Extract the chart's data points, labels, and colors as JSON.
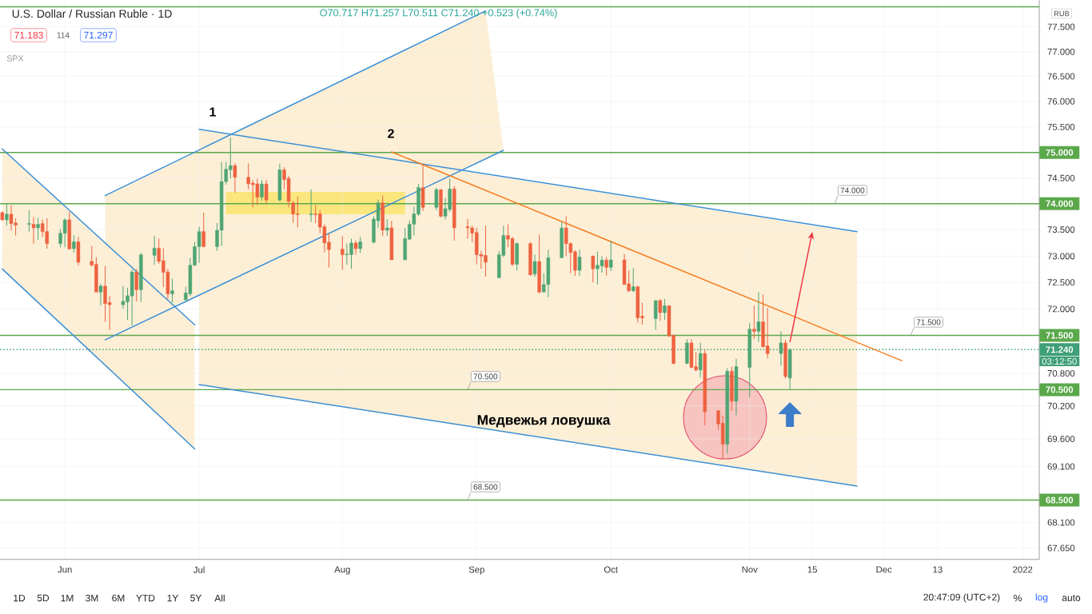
{
  "chart_data": {
    "type": "candlestick",
    "title": "U.S. Dollar / Russian Ruble · 1D",
    "subtitle": "O70.717 H71.257 L70.511 C71.240 +0.523 (+0.74%)",
    "x": [
      "2021-05-18",
      "2021-05-19",
      "2021-05-20",
      "2021-05-21",
      "2021-05-24",
      "2021-05-25",
      "2021-05-26",
      "2021-05-27",
      "2021-05-28",
      "2021-05-31",
      "2021-06-01",
      "2021-06-02",
      "2021-06-03",
      "2021-06-04",
      "2021-06-07",
      "2021-06-08",
      "2021-06-09",
      "2021-06-10",
      "2021-06-11",
      "2021-06-14",
      "2021-06-15",
      "2021-06-16",
      "2021-06-17",
      "2021-06-18",
      "2021-06-21",
      "2021-06-22",
      "2021-06-23",
      "2021-06-24",
      "2021-06-25",
      "2021-06-28",
      "2021-06-29",
      "2021-06-30",
      "2021-07-01",
      "2021-07-02",
      "2021-07-05",
      "2021-07-06",
      "2021-07-07",
      "2021-07-08",
      "2021-07-09",
      "2021-07-12",
      "2021-07-13",
      "2021-07-14",
      "2021-07-15",
      "2021-07-16",
      "2021-07-19",
      "2021-07-20",
      "2021-07-21",
      "2021-07-22",
      "2021-07-23",
      "2021-07-26",
      "2021-07-27",
      "2021-07-28",
      "2021-07-29",
      "2021-07-30",
      "2021-08-02",
      "2021-08-03",
      "2021-08-04",
      "2021-08-05",
      "2021-08-06",
      "2021-08-09",
      "2021-08-10",
      "2021-08-11",
      "2021-08-12",
      "2021-08-13",
      "2021-08-16",
      "2021-08-17",
      "2021-08-18",
      "2021-08-19",
      "2021-08-20",
      "2021-08-23",
      "2021-08-24",
      "2021-08-25",
      "2021-08-26",
      "2021-08-27",
      "2021-08-30",
      "2021-08-31",
      "2021-09-01",
      "2021-09-02",
      "2021-09-03",
      "2021-09-06",
      "2021-09-07",
      "2021-09-08",
      "2021-09-09",
      "2021-09-10",
      "2021-09-13",
      "2021-09-14",
      "2021-09-15",
      "2021-09-16",
      "2021-09-17",
      "2021-09-20",
      "2021-09-21",
      "2021-09-22",
      "2021-09-23",
      "2021-09-24",
      "2021-09-27",
      "2021-09-28",
      "2021-09-29",
      "2021-09-30",
      "2021-10-01",
      "2021-10-04",
      "2021-10-05",
      "2021-10-06",
      "2021-10-07",
      "2021-10-08",
      "2021-10-11",
      "2021-10-12",
      "2021-10-13",
      "2021-10-14",
      "2021-10-15",
      "2021-10-18",
      "2021-10-19",
      "2021-10-20",
      "2021-10-21",
      "2021-10-22",
      "2021-10-25",
      "2021-10-26",
      "2021-10-27",
      "2021-10-28",
      "2021-10-29",
      "2021-11-01",
      "2021-11-02",
      "2021-11-03",
      "2021-11-04",
      "2021-11-05",
      "2021-11-08",
      "2021-11-09",
      "2021-11-10"
    ],
    "ohlc": [
      [
        73.83,
        73.86,
        73.68,
        73.69
      ],
      [
        73.69,
        74.01,
        73.58,
        73.8
      ],
      [
        73.8,
        73.97,
        73.49,
        73.62
      ],
      [
        73.63,
        73.72,
        73.39,
        73.59
      ],
      [
        73.6,
        73.87,
        73.46,
        73.62
      ],
      [
        73.61,
        73.75,
        73.23,
        73.53
      ],
      [
        73.53,
        73.73,
        73.31,
        73.61
      ],
      [
        73.62,
        73.7,
        73.37,
        73.46
      ],
      [
        73.47,
        73.72,
        73.14,
        73.23
      ],
      [
        73.23,
        73.51,
        73.16,
        73.43
      ],
      [
        73.43,
        73.72,
        73.16,
        73.69
      ],
      [
        73.69,
        73.84,
        73.12,
        73.13
      ],
      [
        73.14,
        73.39,
        73.06,
        73.27
      ],
      [
        73.27,
        73.37,
        72.82,
        72.88
      ],
      [
        72.9,
        73.19,
        72.8,
        72.82
      ],
      [
        72.84,
        72.98,
        72.32,
        72.32
      ],
      [
        72.32,
        72.47,
        72.06,
        72.43
      ],
      [
        72.43,
        72.81,
        71.76,
        72.1
      ],
      [
        72.12,
        72.24,
        71.61,
        72.08
      ],
      [
        72.08,
        72.43,
        72.01,
        72.14
      ],
      [
        72.13,
        72.4,
        71.79,
        72.25
      ],
      [
        72.24,
        72.74,
        71.69,
        72.7
      ],
      [
        72.7,
        72.76,
        72.14,
        72.36
      ],
      [
        72.36,
        73.06,
        72.13,
        73.02
      ],
      [
        73.01,
        73.38,
        72.83,
        73.15
      ],
      [
        73.15,
        73.33,
        72.86,
        72.9
      ],
      [
        72.91,
        73.15,
        72.41,
        72.69
      ],
      [
        72.7,
        72.76,
        72.18,
        72.28
      ],
      [
        72.28,
        72.57,
        72.11,
        72.34
      ],
      [
        72.17,
        72.42,
        72.16,
        72.3
      ],
      [
        72.28,
        72.96,
        72.24,
        72.82
      ],
      [
        72.82,
        73.27,
        72.81,
        73.18
      ],
      [
        73.18,
        73.56,
        72.87,
        73.47
      ],
      [
        73.47,
        73.83,
        73.16,
        73.18
      ],
      [
        73.18,
        73.63,
        73.1,
        73.49
      ],
      [
        73.49,
        74.81,
        73.2,
        74.43
      ],
      [
        74.43,
        74.81,
        74.37,
        74.67
      ],
      [
        74.66,
        75.29,
        74.49,
        74.74
      ],
      [
        74.74,
        74.79,
        74.21,
        74.51
      ],
      [
        74.52,
        74.79,
        74.28,
        74.38
      ],
      [
        74.4,
        74.46,
        73.93,
        74.37
      ],
      [
        74.38,
        74.48,
        73.97,
        74.13
      ],
      [
        74.13,
        74.46,
        74.06,
        74.38
      ],
      [
        74.38,
        74.46,
        73.99,
        74.07
      ],
      [
        74.07,
        74.78,
        74.04,
        74.66
      ],
      [
        74.66,
        74.71,
        74.28,
        74.47
      ],
      [
        74.49,
        74.54,
        73.93,
        74.04
      ],
      [
        74.02,
        74.06,
        73.64,
        73.8
      ],
      [
        73.81,
        74.14,
        73.55,
        73.79
      ],
      [
        73.79,
        74.28,
        73.65,
        73.81
      ],
      [
        73.81,
        73.97,
        73.63,
        73.79
      ],
      [
        73.81,
        73.88,
        73.43,
        73.55
      ],
      [
        73.56,
        73.61,
        73.07,
        73.25
      ],
      [
        73.26,
        73.44,
        72.78,
        73.12
      ],
      [
        73.13,
        73.38,
        72.74,
        73.02
      ],
      [
        73.02,
        73.23,
        72.83,
        73.04
      ],
      [
        73.03,
        73.33,
        72.76,
        73.25
      ],
      [
        73.25,
        73.3,
        73.03,
        73.14
      ],
      [
        73.14,
        73.36,
        73.05,
        73.27
      ],
      [
        73.26,
        73.76,
        73.23,
        73.71
      ],
      [
        73.68,
        74.08,
        73.53,
        74.02
      ],
      [
        74.02,
        74.16,
        73.38,
        73.49
      ],
      [
        73.49,
        73.71,
        73.38,
        73.53
      ],
      [
        73.53,
        73.68,
        72.93,
        72.93
      ],
      [
        72.93,
        73.53,
        72.93,
        73.33
      ],
      [
        73.32,
        73.68,
        73.31,
        73.61
      ],
      [
        73.61,
        73.94,
        73.39,
        73.81
      ],
      [
        73.8,
        74.38,
        73.76,
        74.32
      ],
      [
        74.31,
        74.76,
        73.86,
        73.93
      ],
      [
        73.93,
        74.31,
        73.87,
        74.27
      ],
      [
        74.27,
        74.28,
        73.74,
        73.76
      ],
      [
        73.76,
        74.11,
        73.7,
        73.91
      ],
      [
        73.89,
        74.48,
        73.84,
        74.29
      ],
      [
        74.29,
        74.34,
        73.29,
        73.54
      ],
      [
        73.56,
        73.71,
        73.33,
        73.53
      ],
      [
        73.54,
        73.57,
        73.26,
        73.44
      ],
      [
        73.45,
        73.53,
        72.84,
        73.02
      ],
      [
        73.03,
        73.09,
        72.76,
        73.0
      ],
      [
        73.01,
        73.58,
        72.61,
        72.88
      ],
      [
        72.59,
        73.09,
        72.59,
        73.02
      ],
      [
        73.01,
        73.57,
        72.98,
        73.39
      ],
      [
        73.39,
        73.6,
        73.17,
        73.32
      ],
      [
        73.33,
        73.36,
        72.81,
        72.84
      ],
      [
        72.84,
        73.26,
        72.73,
        73.23
      ],
      [
        73.23,
        73.26,
        72.63,
        72.64
      ],
      [
        72.66,
        73.03,
        72.61,
        72.89
      ],
      [
        72.89,
        73.41,
        72.29,
        72.32
      ],
      [
        72.32,
        72.67,
        72.31,
        72.46
      ],
      [
        72.46,
        73.12,
        72.22,
        72.97
      ],
      [
        72.97,
        73.65,
        72.96,
        73.53
      ],
      [
        73.53,
        73.76,
        72.99,
        73.23
      ],
      [
        73.23,
        73.26,
        72.67,
        73.07
      ],
      [
        73.08,
        73.11,
        72.62,
        72.73
      ],
      [
        72.73,
        73.12,
        72.63,
        72.98
      ],
      [
        72.99,
        73.01,
        72.5,
        72.76
      ],
      [
        72.76,
        73.08,
        72.46,
        72.82
      ],
      [
        72.81,
        73.0,
        72.68,
        72.92
      ],
      [
        72.92,
        72.98,
        72.63,
        72.78
      ],
      [
        72.78,
        73.29,
        72.71,
        72.93
      ],
      [
        72.93,
        73.04,
        72.45,
        72.46
      ],
      [
        72.47,
        72.73,
        72.32,
        72.34
      ],
      [
        72.34,
        72.77,
        72.32,
        72.42
      ],
      [
        72.42,
        72.43,
        71.74,
        71.83
      ],
      [
        71.86,
        72.11,
        71.71,
        71.83
      ],
      [
        71.82,
        72.16,
        71.61,
        72.16
      ],
      [
        72.16,
        72.18,
        71.78,
        71.93
      ],
      [
        71.93,
        72.18,
        71.79,
        72.06
      ],
      [
        72.06,
        72.06,
        71.48,
        71.49
      ],
      [
        71.51,
        71.52,
        70.96,
        70.98
      ],
      [
        70.98,
        71.43,
        70.97,
        71.37
      ],
      [
        71.37,
        71.43,
        70.89,
        70.91
      ],
      [
        70.92,
        71.19,
        70.84,
        70.86
      ],
      [
        70.86,
        71.36,
        70.72,
        71.17
      ],
      [
        71.17,
        71.23,
        69.85,
        70.09
      ],
      [
        70.11,
        70.11,
        69.76,
        69.87
      ],
      [
        69.88,
        70.02,
        69.23,
        69.5
      ],
      [
        69.5,
        70.89,
        69.34,
        70.84
      ],
      [
        70.84,
        70.93,
        70.11,
        70.29
      ],
      [
        70.29,
        71.07,
        70.03,
        70.92
      ],
      [
        70.91,
        71.73,
        70.36,
        71.62
      ],
      [
        71.62,
        72.06,
        71.43,
        71.58
      ],
      [
        71.58,
        72.31,
        71.38,
        71.76
      ],
      [
        71.76,
        72.27,
        71.28,
        71.29
      ],
      [
        71.31,
        72.02,
        71.08,
        71.17
      ],
      [
        71.17,
        71.58,
        70.94,
        71.37
      ],
      [
        71.37,
        71.42,
        70.71,
        70.74
      ],
      [
        70.717,
        71.257,
        70.511,
        71.24
      ]
    ],
    "series": [
      {
        "type": "line",
        "color": "#3a8fd6",
        "x": [
          "2021-05-18",
          "2021-06-30"
        ],
        "values": [
          75.07,
          71.7
        ]
      },
      {
        "type": "line",
        "color": "#3a8fd6",
        "x": [
          "2021-05-18",
          "2021-06-30"
        ],
        "values": [
          72.75,
          69.42
        ]
      },
      {
        "type": "line",
        "color": "#3a8fd6",
        "x": [
          "2021-06-10",
          "2021-09-07"
        ],
        "values": [
          71.42,
          75.04
        ]
      },
      {
        "type": "line",
        "color": "#3a8fd6",
        "x": [
          "2021-06-10",
          "2021-09-03"
        ],
        "values": [
          74.16,
          77.82
        ]
      },
      {
        "type": "line",
        "color": "#3a8fd6",
        "x": [
          "2021-07-01",
          "2021-11-25"
        ],
        "values": [
          75.45,
          73.46
        ]
      },
      {
        "type": "line",
        "color": "#3a8fd6",
        "x": [
          "2021-07-01",
          "2021-11-25"
        ],
        "values": [
          70.59,
          68.75
        ]
      },
      {
        "type": "line",
        "color": "#f57c1f",
        "x": [
          "2021-08-13",
          "2021-12-05"
        ],
        "values": [
          75.01,
          71.03
        ]
      }
    ],
    "xlim": [
      "2021-05-17T12:00",
      "2022-01-04T17:00"
    ],
    "xticks": [
      {
        "value": "2021-06-01",
        "label": "Jun"
      },
      {
        "value": "2021-07-01",
        "label": "Jul"
      },
      {
        "value": "2021-08-02",
        "label": "Aug"
      },
      {
        "value": "2021-09-01",
        "label": "Sep"
      },
      {
        "value": "2021-10-01",
        "label": "Oct"
      },
      {
        "value": "2021-11-01",
        "label": "Nov"
      },
      {
        "value": "2021-11-15",
        "label": "15"
      },
      {
        "value": "2021-12-01",
        "label": "Dec"
      },
      {
        "value": "2021-12-13",
        "label": "13"
      },
      {
        "value": "2022-01-01",
        "label": "2022"
      }
    ],
    "ylim": [
      67.45,
      78.05
    ],
    "yticks": [
      {
        "value": 77.5,
        "label": "77.500"
      },
      {
        "value": 77.0,
        "label": "77.000"
      },
      {
        "value": 76.5,
        "label": "76.500"
      },
      {
        "value": 76.0,
        "label": "76.000"
      },
      {
        "value": 75.5,
        "label": "75.500"
      },
      {
        "value": 74.5,
        "label": "74.500"
      },
      {
        "value": 73.5,
        "label": "73.500"
      },
      {
        "value": 73.0,
        "label": "73.000"
      },
      {
        "value": 72.5,
        "label": "72.500"
      },
      {
        "value": 72.0,
        "label": "72.000"
      },
      {
        "value": 70.8,
        "label": "70.800"
      },
      {
        "value": 70.2,
        "label": "70.200"
      },
      {
        "value": 69.6,
        "label": "69.600"
      },
      {
        "value": 69.1,
        "label": "69.100"
      },
      {
        "value": 68.1,
        "label": "68.100"
      },
      {
        "value": 67.65,
        "label": "67.650"
      }
    ],
    "log": true,
    "grid": true,
    "ref_lines": [
      {
        "axis": "y",
        "value": 77.9,
        "color": "#5ba84b"
      },
      {
        "axis": "y",
        "value": 75.0,
        "label": "75.000",
        "color": "#5ba84b"
      },
      {
        "axis": "y",
        "value": 74.0,
        "label": "74.000",
        "color": "#5ba84b"
      },
      {
        "axis": "y",
        "value": 71.5,
        "label": "71.500",
        "color": "#5ba84b"
      },
      {
        "axis": "y",
        "value": 70.5,
        "label": "70.500",
        "color": "#5ba84b"
      },
      {
        "axis": "y",
        "value": 68.5,
        "label": "68.500",
        "color": "#5ba84b"
      },
      {
        "axis": "y",
        "value": 71.24,
        "label": "71.240",
        "color": "#3f9f78",
        "line_style": "dotted"
      }
    ],
    "annotations": [
      "71.183",
      "114",
      "71.297",
      "SPX",
      "RUB",
      "03:12:50",
      "1D",
      "5D",
      "1M",
      "3M",
      "6M",
      "YTD",
      "1Y",
      "5Y",
      "All",
      "20:47:09 (UTC+2)",
      "%",
      "log",
      "auto",
      "1",
      "2",
      "Медвежья ловушка",
      {
        "text": "74.000",
        "x": "2021-11-20",
        "y": 74.0
      },
      {
        "text": "71.500",
        "x": "2021-12-07",
        "y": 71.5
      },
      {
        "text": "70.500",
        "x": "2021-08-30",
        "y": 70.5
      },
      {
        "text": "68.500",
        "x": "2021-08-30",
        "y": 68.5
      }
    ]
  }
}
